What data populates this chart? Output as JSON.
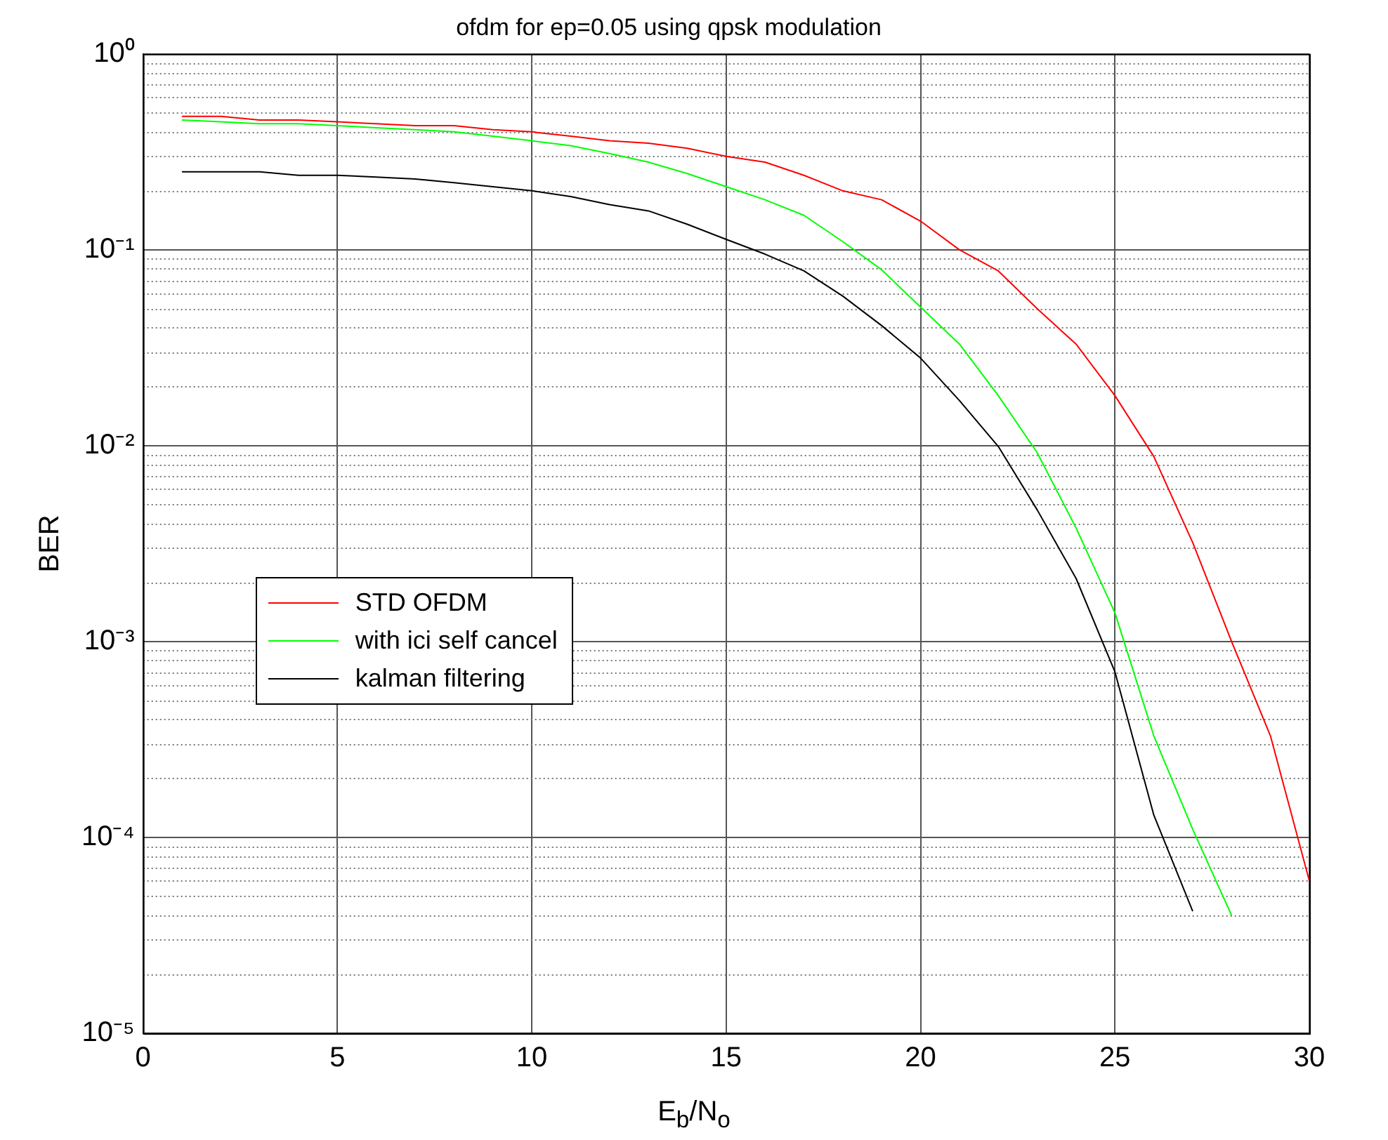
{
  "chart_data": {
    "type": "line",
    "title": "ofdm for ep=0.05 using qpsk modulation",
    "xlabel": "E$_{b}$/N$_{o}$",
    "ylabel": "BER",
    "xlim": [
      0,
      30
    ],
    "xticks": [
      0,
      5,
      10,
      15,
      20,
      25,
      30
    ],
    "ylim": [
      1e-05,
      1
    ],
    "yticks": [
      {
        "value": 1e-05,
        "label": "10⁻⁵"
      },
      {
        "value": 0.0001,
        "label": "10⁻⁴"
      },
      {
        "value": 0.001,
        "label": "10⁻³"
      },
      {
        "value": 0.01,
        "label": "10⁻²"
      },
      {
        "value": 0.1,
        "label": "10⁻¹"
      },
      {
        "value": 1,
        "label": "10⁰"
      }
    ],
    "log": "y",
    "grid": true,
    "legend": "center left",
    "marker": "none",
    "line_style": "solid",
    "series": [
      {
        "name": "STD OFDM",
        "color": "#ff0000",
        "x": [
          1,
          2,
          3,
          4,
          5,
          6,
          7,
          8,
          9,
          10,
          11,
          12,
          13,
          14,
          15,
          16,
          17,
          18,
          19,
          20,
          21,
          22,
          23,
          24,
          25,
          26,
          27,
          28,
          29,
          30
        ],
        "values": [
          0.48,
          0.48,
          0.46,
          0.46,
          0.45,
          0.44,
          0.43,
          0.43,
          0.41,
          0.4,
          0.38,
          0.36,
          0.35,
          0.33,
          0.3,
          0.28,
          0.24,
          0.2,
          0.18,
          0.14,
          0.1,
          0.078,
          0.05,
          0.033,
          0.018,
          0.0088,
          0.0032,
          0.001,
          0.00033,
          6e-05
        ]
      },
      {
        "name": "with ici self cancel",
        "color": "#00ff00",
        "x": [
          1,
          2,
          3,
          4,
          5,
          6,
          7,
          8,
          9,
          10,
          11,
          12,
          13,
          14,
          15,
          16,
          17,
          18,
          19,
          20,
          21,
          22,
          23,
          24,
          25,
          26,
          27,
          28
        ],
        "values": [
          0.46,
          0.45,
          0.44,
          0.44,
          0.43,
          0.42,
          0.41,
          0.4,
          0.38,
          0.36,
          0.34,
          0.31,
          0.28,
          0.245,
          0.21,
          0.18,
          0.15,
          0.11,
          0.079,
          0.051,
          0.033,
          0.018,
          0.0092,
          0.0038,
          0.0014,
          0.00033,
          0.00011,
          4e-05
        ]
      },
      {
        "name": "kalman filtering",
        "color": "#000000",
        "x": [
          1,
          2,
          3,
          4,
          5,
          6,
          7,
          8,
          9,
          10,
          11,
          12,
          13,
          14,
          15,
          16,
          17,
          18,
          19,
          20,
          21,
          22,
          23,
          24,
          25,
          26,
          27
        ],
        "values": [
          0.25,
          0.25,
          0.25,
          0.24,
          0.24,
          0.235,
          0.23,
          0.22,
          0.21,
          0.2,
          0.187,
          0.17,
          0.158,
          0.135,
          0.113,
          0.095,
          0.078,
          0.058,
          0.041,
          0.028,
          0.017,
          0.0099,
          0.0047,
          0.0021,
          0.0007,
          0.00013,
          4.2e-05
        ]
      }
    ]
  }
}
